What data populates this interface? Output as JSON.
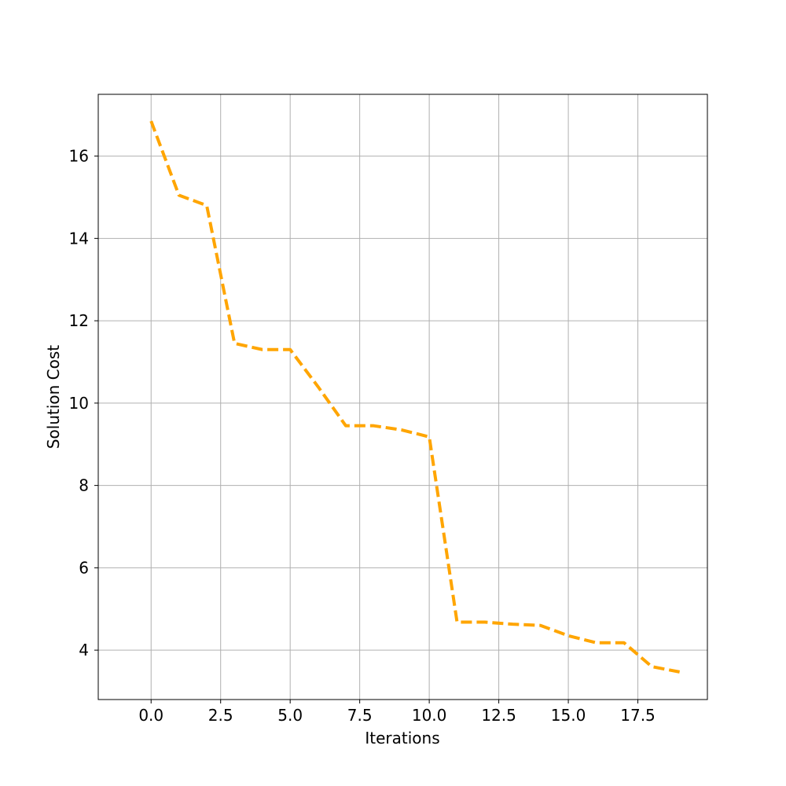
{
  "chart_data": {
    "type": "line",
    "title": "",
    "xlabel": "Iterations",
    "ylabel": "Solution Cost",
    "xlim": [
      -1.9,
      20.0
    ],
    "ylim": [
      2.8,
      17.5
    ],
    "xticks": [
      0.0,
      2.5,
      5.0,
      7.5,
      10.0,
      12.5,
      15.0,
      17.5
    ],
    "xtick_labels": [
      "0.0",
      "2.5",
      "5.0",
      "7.5",
      "10.0",
      "12.5",
      "15.0",
      "17.5"
    ],
    "yticks": [
      4,
      6,
      8,
      10,
      12,
      14,
      16
    ],
    "ytick_labels": [
      "4",
      "6",
      "8",
      "10",
      "12",
      "14",
      "16"
    ],
    "grid": true,
    "legend": "none",
    "series": [
      {
        "line_style": "dashed",
        "color": "#ffa500",
        "x": [
          0,
          1,
          2,
          3,
          4,
          5,
          6,
          7,
          8,
          9,
          10,
          11,
          12,
          13,
          14,
          15,
          16,
          17,
          18,
          19
        ],
        "y": [
          16.85,
          15.05,
          14.8,
          11.45,
          11.3,
          11.3,
          10.4,
          9.45,
          9.45,
          9.35,
          9.18,
          4.68,
          4.68,
          4.63,
          4.6,
          4.35,
          4.18,
          4.18,
          3.6,
          3.47
        ]
      }
    ]
  }
}
